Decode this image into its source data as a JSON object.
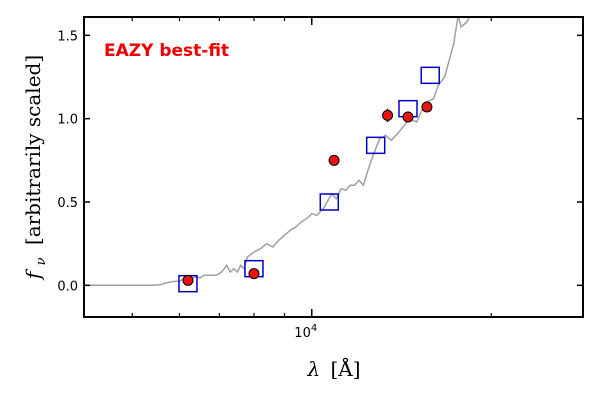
{
  "chart_data": {
    "type": "scatter",
    "title": "",
    "annotation": "EAZY best-fit",
    "xlabel_symbol": "λ",
    "xlabel_unit": "[Å]",
    "ylabel_symbol": "f",
    "ylabel_sub": "ν",
    "ylabel_text": "[arbitrarily scaled]",
    "x_scale": "log",
    "xlim": [
      4150,
      28500
    ],
    "ylim": [
      -0.19,
      1.61
    ],
    "x_tick_labels": [
      {
        "value": 10000,
        "base": "10",
        "exp": "4"
      }
    ],
    "x_minor_ticks": [
      5000,
      6000,
      7000,
      8000,
      9000,
      20000
    ],
    "y_ticks": [
      0.0,
      0.5,
      1.0,
      1.5
    ],
    "y_tick_labels": [
      "0.0",
      "0.5",
      "1.0",
      "1.5"
    ],
    "grid": false,
    "colors": {
      "template": "#a0a0a0",
      "model": "#0000cc",
      "observed_fill": "#ee1111",
      "annotation": "#ee0000",
      "axes": "#000000"
    },
    "series": [
      {
        "type": "line",
        "role": "template spectrum",
        "x": [
          4150,
          4500,
          4800,
          5000,
          5200,
          5400,
          5600,
          5700,
          5800,
          5900,
          6000,
          6100,
          6200,
          6300,
          6400,
          6500,
          6600,
          6700,
          6800,
          6900,
          7000,
          7100,
          7200,
          7300,
          7400,
          7500,
          7600,
          7700,
          7800,
          8000,
          8200,
          8400,
          8600,
          8800,
          9000,
          9200,
          9400,
          9600,
          9800,
          10000,
          10200,
          10500,
          10800,
          11000,
          11200,
          11400,
          11600,
          11800,
          12000,
          12200,
          12500,
          12800,
          13000,
          13300,
          13600,
          14000,
          14300,
          14600,
          15000,
          15300,
          15600,
          16000,
          16300,
          16700,
          17000,
          17300,
          17600,
          17800,
          18200,
          18600
        ],
        "y": [
          0.0,
          0.0,
          0.0,
          0.0,
          0.0,
          0.0,
          0.005,
          0.015,
          0.02,
          0.025,
          0.025,
          0.04,
          0.04,
          0.045,
          0.05,
          0.045,
          0.06,
          0.06,
          0.06,
          0.06,
          0.07,
          0.09,
          0.12,
          0.08,
          0.1,
          0.08,
          0.12,
          0.1,
          0.17,
          0.2,
          0.22,
          0.25,
          0.23,
          0.27,
          0.3,
          0.33,
          0.35,
          0.38,
          0.4,
          0.43,
          0.42,
          0.47,
          0.55,
          0.52,
          0.58,
          0.57,
          0.6,
          0.6,
          0.63,
          0.6,
          0.72,
          0.82,
          0.88,
          0.9,
          0.87,
          0.92,
          0.96,
          1.0,
          0.98,
          1.05,
          1.1,
          1.12,
          1.2,
          1.25,
          1.35,
          1.45,
          1.62,
          1.55,
          1.58,
          1.65
        ]
      },
      {
        "type": "scatter",
        "role": "model photometry",
        "marker": "open square",
        "x": [
          6200,
          8000,
          10700,
          12800,
          14500,
          15800
        ],
        "y": [
          0.01,
          0.1,
          0.5,
          0.84,
          1.06,
          1.26
        ]
      },
      {
        "type": "scatter",
        "role": "observed photometry",
        "marker": "filled circle",
        "x": [
          6200,
          8000,
          10900,
          13400,
          14500,
          15600
        ],
        "y": [
          0.03,
          0.07,
          0.75,
          1.02,
          1.01,
          1.07
        ],
        "yerr": [
          0.02,
          0.02,
          0.02,
          0.04,
          0.02,
          0.02
        ]
      }
    ]
  }
}
